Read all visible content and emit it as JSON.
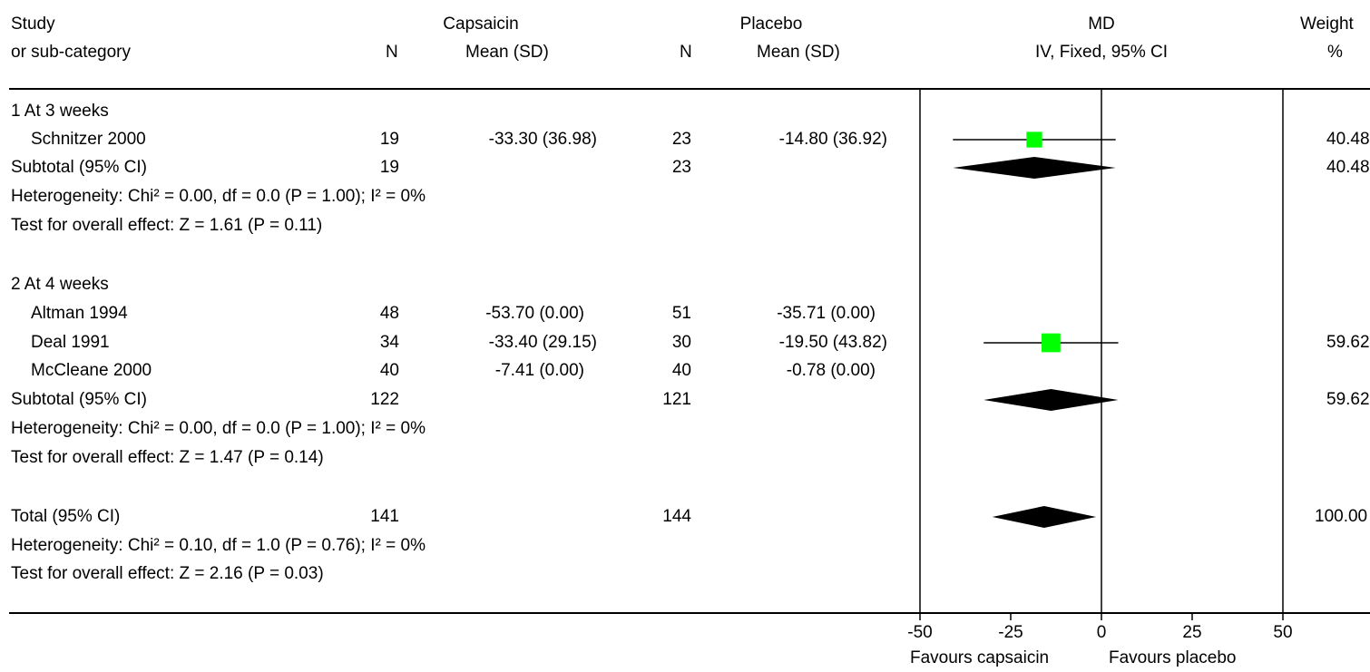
{
  "header": {
    "study_l1": "Study",
    "study_l2": "or sub-category",
    "treat_label": "Capsaicin",
    "control_label": "Placebo",
    "n_label": "N",
    "mean_sd_label": "Mean (SD)",
    "md_l1": "MD",
    "md_l2": "IV, Fixed, 95% CI",
    "weight_l1": "Weight",
    "weight_l2": "%"
  },
  "rows": [
    {
      "text": "1 At 3 weeks"
    },
    {
      "study": "Schnitzer 2000",
      "n1": "19",
      "ms1": "-33.30 (36.98)",
      "n2": "23",
      "ms2": "-14.80 (36.92)",
      "weight": "40.48"
    },
    {
      "study": "Subtotal (95% CI)",
      "n1": "19",
      "n2": "23",
      "weight": "40.48"
    },
    {
      "text": "Heterogeneity: Chi² = 0.00, df = 0.0 (P = 1.00); I² = 0%"
    },
    {
      "text": "Test for overall effect: Z = 1.61 (P = 0.11)"
    },
    {
      "text": "2 At 4 weeks"
    },
    {
      "study": "Altman 1994",
      "n1": "48",
      "ms1": "-53.70 (0.00)",
      "n2": "51",
      "ms2": "-35.71 (0.00)"
    },
    {
      "study": "Deal 1991",
      "n1": "34",
      "ms1": "-33.40 (29.15)",
      "n2": "30",
      "ms2": "-19.50 (43.82)",
      "weight": "59.62"
    },
    {
      "study": "McCleane 2000",
      "n1": "40",
      "ms1": "-7.41 (0.00)",
      "n2": "40",
      "ms2": "-0.78 (0.00)"
    },
    {
      "study": "Subtotal (95% CI)",
      "n1": "122",
      "n2": "121",
      "weight": "59.62"
    },
    {
      "text": "Heterogeneity: Chi² = 0.00, df = 0.0 (P = 1.00); I² = 0%"
    },
    {
      "text": "Test for overall effect: Z = 1.47 (P = 0.14)"
    },
    {
      "study": "Total (95% CI)",
      "n1": "141",
      "n2": "144",
      "weight": "100.00"
    },
    {
      "text": "Heterogeneity: Chi² = 0.10, df = 1.0 (P = 0.76); I² = 0%"
    },
    {
      "text": "Test for overall effect: Z = 2.16 (P = 0.03)"
    }
  ],
  "footer": {
    "favours_left": "Favours capsaicin",
    "favours_right": "Favours placebo"
  },
  "colors": {
    "study_marker": "#00ff00",
    "diamond": "#000000",
    "line": "#000000"
  },
  "chart_data": {
    "type": "forest",
    "xlim": [
      -50,
      50
    ],
    "ticks": [
      -50,
      -25,
      0,
      25,
      50
    ],
    "tick_labels": [
      "-50",
      "-25",
      "0",
      "25",
      "50"
    ],
    "studies": [
      {
        "row": 1,
        "md": -18.5,
        "ci": [
          -40.92,
          3.92
        ],
        "weight": 40.48
      },
      {
        "row": 7,
        "md": -13.9,
        "ci": [
          -32.44,
          4.64
        ],
        "weight": 59.62
      }
    ],
    "diamonds": [
      {
        "row": 2,
        "md": -18.5,
        "ci": [
          -40.92,
          3.92
        ]
      },
      {
        "row": 9,
        "md": -13.9,
        "ci": [
          -32.44,
          4.64
        ]
      },
      {
        "row": 12,
        "md": -15.77,
        "ci": [
          -30.07,
          -1.47
        ]
      }
    ]
  }
}
